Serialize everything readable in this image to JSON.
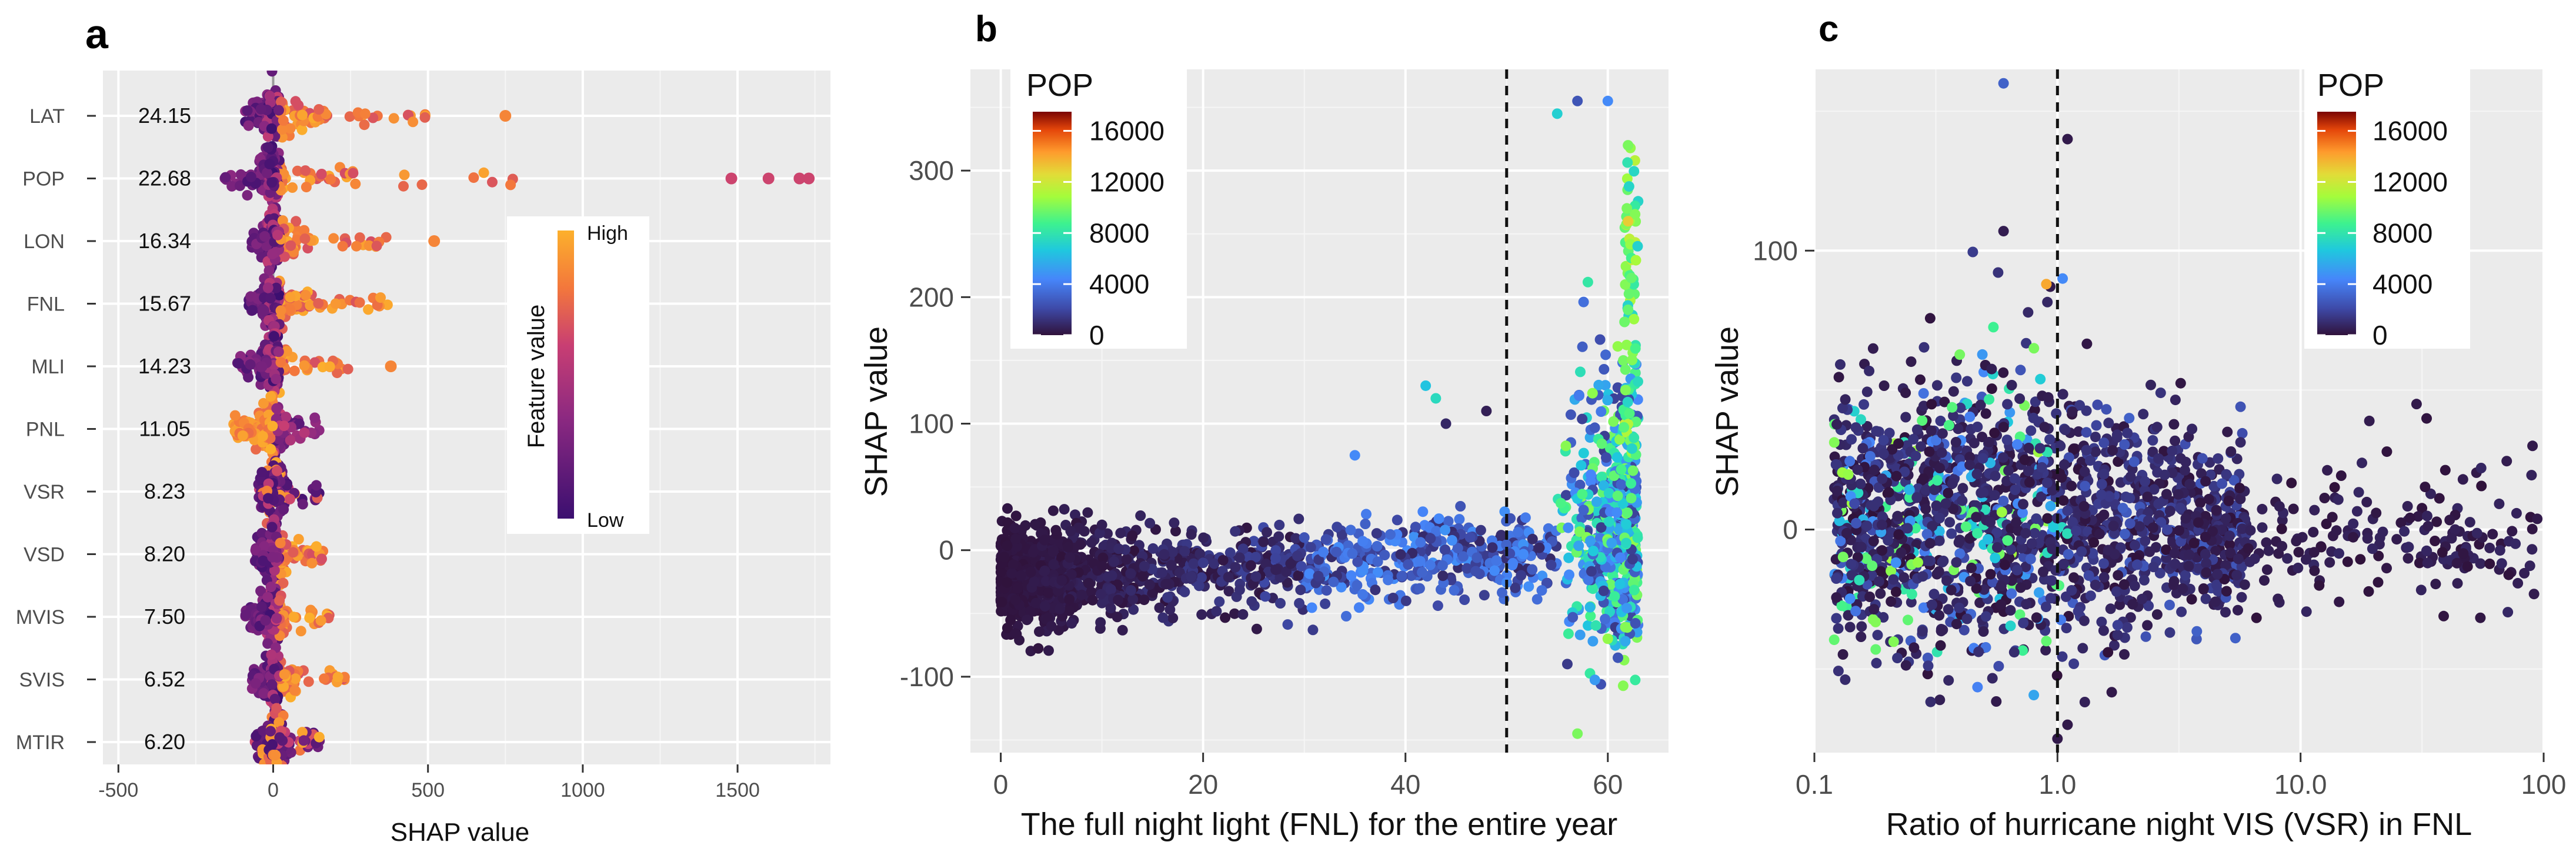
{
  "panels": {
    "a": {
      "label": "a"
    },
    "b": {
      "label": "b"
    },
    "c": {
      "label": "c"
    }
  },
  "chart_data": [
    {
      "panel": "a",
      "type": "scatter",
      "title": "",
      "xlabel": "SHAP value",
      "ylabel": "",
      "xlim": [
        -550,
        1800
      ],
      "xticks": [
        -500,
        0,
        500,
        1000,
        1500
      ],
      "xtick_labels": [
        "-500",
        "0",
        "500",
        "1000",
        "1500"
      ],
      "features": [
        {
          "name": "LAT",
          "importance": "24.15",
          "min": -90,
          "max": 500,
          "high_side": "positive",
          "outliers": [
            750
          ]
        },
        {
          "name": "POP",
          "importance": "22.68",
          "min": -160,
          "max": 780,
          "high_side": "positive",
          "outliers": [
            1480,
            1600,
            1700,
            1730
          ]
        },
        {
          "name": "LON",
          "importance": "16.34",
          "min": -70,
          "max": 390,
          "high_side": "positive",
          "outliers": [
            520
          ]
        },
        {
          "name": "FNL",
          "importance": "15.67",
          "min": -80,
          "max": 370,
          "high_side": "positive",
          "outliers": []
        },
        {
          "name": "MLI",
          "importance": "14.23",
          "min": -120,
          "max": 250,
          "high_side": "positive",
          "outliers": [
            380
          ]
        },
        {
          "name": "PNL",
          "importance": "11.05",
          "min": -130,
          "max": 150,
          "high_side": "negative",
          "outliers": []
        },
        {
          "name": "VSR",
          "importance": "8.23",
          "min": -50,
          "max": 170,
          "high_side": "mixed",
          "outliers": []
        },
        {
          "name": "VSD",
          "importance": "8.20",
          "min": -60,
          "max": 170,
          "high_side": "positive",
          "outliers": []
        },
        {
          "name": "MVIS",
          "importance": "7.50",
          "min": -90,
          "max": 200,
          "high_side": "positive",
          "outliers": []
        },
        {
          "name": "SVIS",
          "importance": "6.52",
          "min": -70,
          "max": 270,
          "high_side": "positive",
          "outliers": []
        },
        {
          "name": "MTIR",
          "importance": "6.20",
          "min": -60,
          "max": 150,
          "high_side": "mixed",
          "outliers": []
        }
      ],
      "legend": {
        "title": "Feature value",
        "high": "High",
        "low": "Low",
        "placement": "right"
      }
    },
    {
      "panel": "b",
      "type": "scatter",
      "title": "",
      "xlabel": "The full night light (FNL) for the entire year",
      "ylabel": "SHAP value",
      "xlim": [
        -3,
        66
      ],
      "ylim": [
        -160,
        380
      ],
      "xticks": [
        0,
        20,
        40,
        60
      ],
      "xtick_labels": [
        "0",
        "20",
        "40",
        "60"
      ],
      "yticks": [
        -100,
        0,
        100,
        200,
        300
      ],
      "ytick_labels": [
        "-100",
        "0",
        "100",
        "200",
        "300"
      ],
      "reference_line_x": 50,
      "sample_points": [
        {
          "x": 2,
          "y": -20,
          "pop": 200
        },
        {
          "x": 5,
          "y": -60,
          "pop": 300
        },
        {
          "x": 10,
          "y": 20,
          "pop": 500
        },
        {
          "x": 20,
          "y": -10,
          "pop": 1500
        },
        {
          "x": 30,
          "y": 10,
          "pop": 2500
        },
        {
          "x": 35,
          "y": 75,
          "pop": 4500
        },
        {
          "x": 42,
          "y": 130,
          "pop": 6500
        },
        {
          "x": 43,
          "y": 120,
          "pop": 7500
        },
        {
          "x": 44,
          "y": 100,
          "pop": 800
        },
        {
          "x": 48,
          "y": 110,
          "pop": 500
        },
        {
          "x": 55,
          "y": 345,
          "pop": 7000
        },
        {
          "x": 57,
          "y": 355,
          "pop": 2500
        },
        {
          "x": 60,
          "y": 355,
          "pop": 4500
        },
        {
          "x": 62,
          "y": 320,
          "pop": 10000
        },
        {
          "x": 62,
          "y": 260,
          "pop": 13000
        },
        {
          "x": 57,
          "y": -145,
          "pop": 10000
        },
        {
          "x": 61,
          "y": -85,
          "pop": 2500
        },
        {
          "x": 60,
          "y": -70,
          "pop": 10500
        },
        {
          "x": 56,
          "y": -90,
          "pop": 1500
        },
        {
          "x": 62,
          "y": 190,
          "pop": 9500
        }
      ],
      "legend": {
        "title": "POP",
        "ticks": [
          "16000",
          "12000",
          "8000",
          "4000",
          "0"
        ],
        "tick_values": [
          16000,
          12000,
          8000,
          4000,
          0
        ],
        "max": 17500,
        "placement": "top-left"
      }
    },
    {
      "panel": "c",
      "type": "scatter",
      "title": "",
      "xlabel": "Ratio of hurricane night VIS (VSR) in FNL",
      "ylabel": "SHAP value",
      "xscale": "log",
      "xlim": [
        0.1,
        100
      ],
      "ylim": [
        -80,
        165
      ],
      "xticks": [
        0.1,
        1,
        10,
        100
      ],
      "xtick_labels": [
        "0.1",
        "1.0",
        "10.0",
        "100"
      ],
      "yticks": [
        0,
        100
      ],
      "ytick_labels": [
        "0",
        "100"
      ],
      "reference_line_x": 1.0,
      "sample_points": [
        {
          "x": 0.6,
          "y": 160,
          "pop": 3000
        },
        {
          "x": 0.6,
          "y": 107,
          "pop": 400
        },
        {
          "x": 1.1,
          "y": 140,
          "pop": 300
        },
        {
          "x": 1.05,
          "y": 90,
          "pop": 4500
        },
        {
          "x": 0.9,
          "y": 88,
          "pop": 14000
        },
        {
          "x": 0.8,
          "y": 65,
          "pop": 10000
        },
        {
          "x": 1.1,
          "y": -70,
          "pop": 300
        },
        {
          "x": 1.0,
          "y": -75,
          "pop": 300
        },
        {
          "x": 0.9,
          "y": -40,
          "pop": 9500
        },
        {
          "x": 30,
          "y": 45,
          "pop": 300
        },
        {
          "x": 90,
          "y": 30,
          "pop": 300
        },
        {
          "x": 5,
          "y": 35,
          "pop": 300
        }
      ],
      "legend": {
        "title": "POP",
        "ticks": [
          "16000",
          "12000",
          "8000",
          "4000",
          "0"
        ],
        "tick_values": [
          16000,
          12000,
          8000,
          4000,
          0
        ],
        "max": 17500,
        "placement": "top-right"
      }
    }
  ]
}
